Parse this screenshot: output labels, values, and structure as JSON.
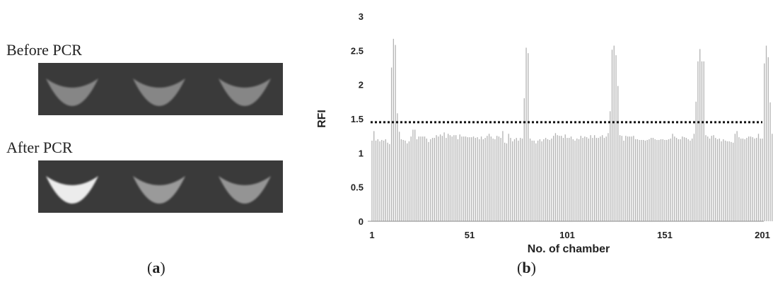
{
  "panel_a": {
    "before_label": "Before PCR",
    "after_label": "After PCR",
    "before_brightness": [
      0.38,
      0.38,
      0.38
    ],
    "after_brightness": [
      0.9,
      0.48,
      0.45
    ],
    "caption_open": "(",
    "caption_letter": "a",
    "caption_close": ")"
  },
  "panel_b": {
    "caption_open": "(",
    "caption_letter": "b",
    "caption_close": ")"
  },
  "chart_data": {
    "type": "bar",
    "xlabel": "No. of chamber",
    "ylabel": "RFI",
    "xlim": [
      1,
      201
    ],
    "ylim": [
      0,
      3
    ],
    "x_ticks": [
      "1",
      "51",
      "101",
      "151",
      "201"
    ],
    "y_ticks": [
      "0",
      "0.5",
      "1",
      "1.5",
      "2",
      "2.5",
      "3"
    ],
    "threshold": 1.45,
    "threshold_style": "dotted",
    "bar_color": "#b3b3b3",
    "values": [
      1.18,
      1.32,
      1.18,
      1.2,
      1.17,
      1.19,
      1.18,
      1.2,
      1.15,
      1.13,
      2.25,
      2.67,
      2.58,
      1.58,
      1.31,
      1.2,
      1.19,
      1.18,
      1.14,
      1.17,
      1.24,
      1.34,
      1.34,
      1.2,
      1.24,
      1.24,
      1.24,
      1.24,
      1.21,
      1.16,
      1.2,
      1.22,
      1.22,
      1.26,
      1.24,
      1.27,
      1.25,
      1.3,
      1.22,
      1.28,
      1.26,
      1.24,
      1.26,
      1.26,
      1.2,
      1.27,
      1.24,
      1.24,
      1.24,
      1.23,
      1.23,
      1.23,
      1.24,
      1.22,
      1.23,
      1.2,
      1.24,
      1.2,
      1.22,
      1.25,
      1.28,
      1.24,
      1.21,
      1.2,
      1.25,
      1.24,
      1.22,
      1.32,
      1.15,
      1.14,
      1.28,
      1.22,
      1.17,
      1.2,
      1.22,
      1.18,
      1.22,
      1.21,
      1.8,
      2.54,
      2.46,
      1.21,
      1.18,
      1.18,
      1.14,
      1.18,
      1.2,
      1.17,
      1.2,
      1.22,
      1.2,
      1.19,
      1.21,
      1.25,
      1.29,
      1.26,
      1.25,
      1.25,
      1.22,
      1.27,
      1.22,
      1.22,
      1.24,
      1.2,
      1.18,
      1.21,
      1.2,
      1.25,
      1.22,
      1.24,
      1.23,
      1.21,
      1.26,
      1.22,
      1.26,
      1.22,
      1.22,
      1.24,
      1.26,
      1.22,
      1.24,
      1.29,
      1.61,
      2.51,
      2.57,
      2.43,
      1.98,
      1.26,
      1.25,
      1.18,
      1.25,
      1.24,
      1.24,
      1.24,
      1.25,
      1.2,
      1.2,
      1.19,
      1.19,
      1.19,
      1.18,
      1.19,
      1.2,
      1.22,
      1.22,
      1.2,
      1.19,
      1.19,
      1.2,
      1.2,
      1.19,
      1.19,
      1.2,
      1.21,
      1.28,
      1.24,
      1.22,
      1.2,
      1.2,
      1.24,
      1.23,
      1.22,
      1.2,
      1.18,
      1.21,
      1.28,
      1.75,
      2.34,
      2.52,
      2.34,
      2.34,
      1.26,
      1.24,
      1.21,
      1.25,
      1.26,
      1.22,
      1.2,
      1.21,
      1.17,
      1.2,
      1.18,
      1.17,
      1.17,
      1.16,
      1.15,
      1.28,
      1.32,
      1.23,
      1.21,
      1.21,
      1.2,
      1.22,
      1.24,
      1.24,
      1.23,
      1.21,
      1.22,
      1.28,
      1.21,
      1.21,
      2.31,
      2.57,
      2.4,
      1.74,
      1.28
    ]
  }
}
